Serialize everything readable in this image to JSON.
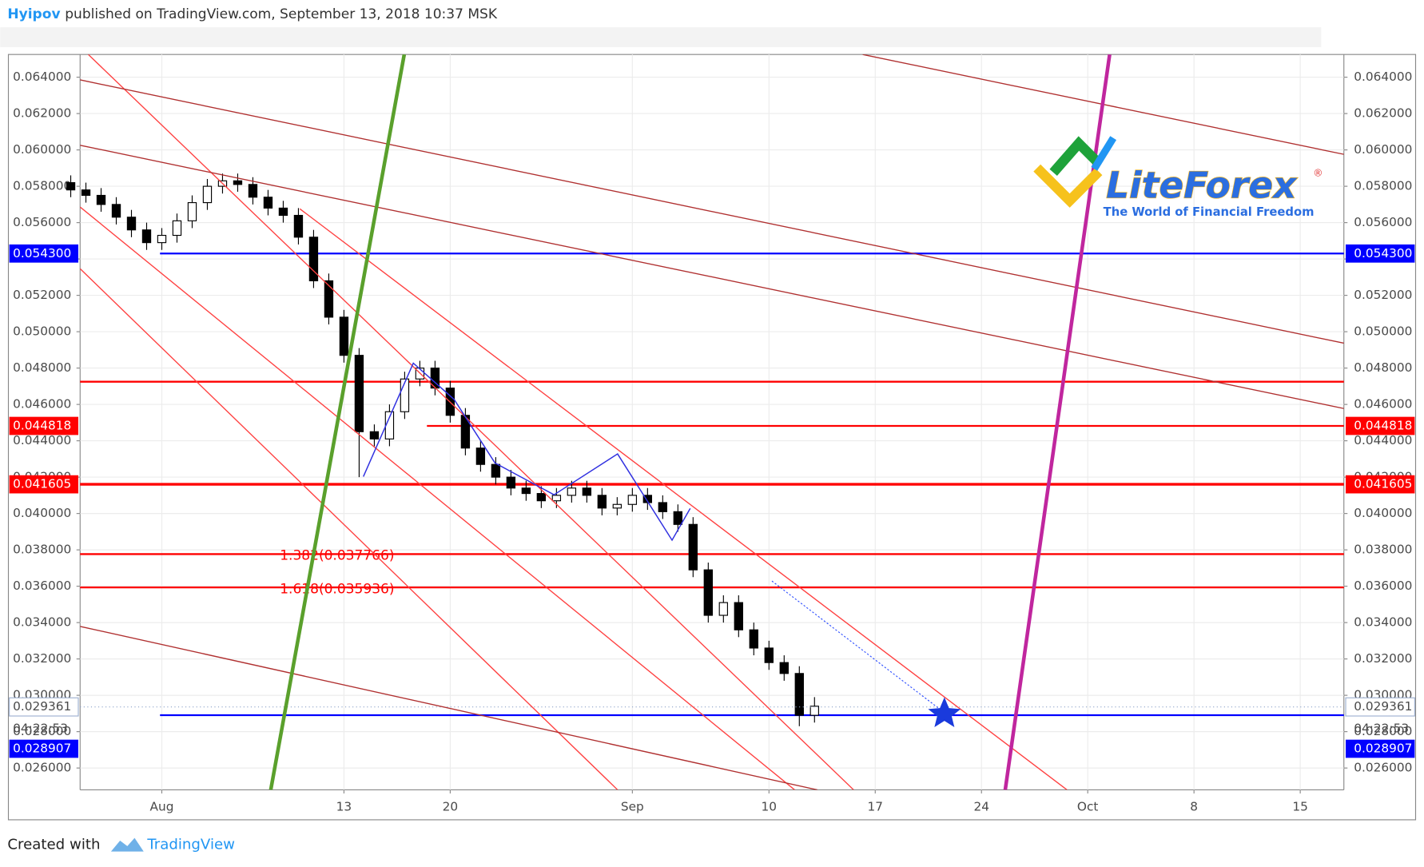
{
  "header": {
    "author": "Hyipov",
    "text": "published on TradingView.com, September 13, 2018 10:37 MSK"
  },
  "footer": {
    "text": "Created with",
    "brand": "TradingView"
  },
  "logo": {
    "name": "LiteForex",
    "mark": "®",
    "tagline": "The World of Financial Freedom"
  },
  "chart_data": {
    "type": "candlestick",
    "up_color": "#ffffff",
    "down_color": "#000000",
    "outline_color": "#000000",
    "grid": true,
    "x": [
      "2018-07-26",
      "2018-07-27",
      "2018-07-28",
      "2018-07-29",
      "2018-07-30",
      "2018-07-31",
      "2018-08-01",
      "2018-08-02",
      "2018-08-03",
      "2018-08-04",
      "2018-08-05",
      "2018-08-06",
      "2018-08-07",
      "2018-08-08",
      "2018-08-09",
      "2018-08-10",
      "2018-08-11",
      "2018-08-12",
      "2018-08-13",
      "2018-08-14",
      "2018-08-15",
      "2018-08-16",
      "2018-08-17",
      "2018-08-18",
      "2018-08-19",
      "2018-08-20",
      "2018-08-21",
      "2018-08-22",
      "2018-08-23",
      "2018-08-24",
      "2018-08-25",
      "2018-08-26",
      "2018-08-27",
      "2018-08-28",
      "2018-08-29",
      "2018-08-30",
      "2018-08-31",
      "2018-09-01",
      "2018-09-02",
      "2018-09-03",
      "2018-09-04",
      "2018-09-05",
      "2018-09-06",
      "2018-09-07",
      "2018-09-08",
      "2018-09-09",
      "2018-09-10",
      "2018-09-11",
      "2018-09-12",
      "2018-09-13"
    ],
    "open": [
      0.0582,
      0.0578,
      0.0575,
      0.057,
      0.0563,
      0.0556,
      0.0549,
      0.0553,
      0.0561,
      0.0571,
      0.058,
      0.0583,
      0.0581,
      0.0574,
      0.0568,
      0.0564,
      0.0552,
      0.0528,
      0.0508,
      0.0487,
      0.0445,
      0.0441,
      0.0456,
      0.0474,
      0.048,
      0.0469,
      0.0454,
      0.0436,
      0.0427,
      0.042,
      0.0414,
      0.0411,
      0.0407,
      0.041,
      0.0414,
      0.041,
      0.0403,
      0.0405,
      0.041,
      0.0406,
      0.0401,
      0.0394,
      0.0369,
      0.0344,
      0.0351,
      0.0336,
      0.0326,
      0.0318,
      0.0312,
      0.0289
    ],
    "high": [
      0.0586,
      0.0582,
      0.0579,
      0.0574,
      0.0567,
      0.056,
      0.0557,
      0.0565,
      0.0575,
      0.0584,
      0.0587,
      0.0587,
      0.0585,
      0.0578,
      0.0572,
      0.0568,
      0.0556,
      0.0532,
      0.0512,
      0.0491,
      0.0449,
      0.046,
      0.0478,
      0.0484,
      0.0484,
      0.0473,
      0.0458,
      0.044,
      0.0431,
      0.0424,
      0.0418,
      0.0415,
      0.0414,
      0.0418,
      0.0418,
      0.0414,
      0.0409,
      0.0414,
      0.0414,
      0.041,
      0.0405,
      0.0398,
      0.0373,
      0.0355,
      0.0355,
      0.034,
      0.033,
      0.0322,
      0.0316,
      0.0299
    ],
    "low": [
      0.0574,
      0.0571,
      0.0566,
      0.0559,
      0.0552,
      0.0545,
      0.0545,
      0.0549,
      0.0557,
      0.0567,
      0.0576,
      0.0577,
      0.057,
      0.0564,
      0.056,
      0.0548,
      0.0524,
      0.0504,
      0.0483,
      0.042,
      0.0437,
      0.0437,
      0.0452,
      0.047,
      0.0465,
      0.045,
      0.0432,
      0.0423,
      0.0416,
      0.041,
      0.0407,
      0.0403,
      0.0403,
      0.0406,
      0.0406,
      0.0399,
      0.0399,
      0.0401,
      0.0402,
      0.0397,
      0.039,
      0.0365,
      0.034,
      0.034,
      0.0332,
      0.0322,
      0.0314,
      0.0308,
      0.0283,
      0.0285
    ],
    "close": [
      0.0578,
      0.0575,
      0.057,
      0.0563,
      0.0556,
      0.0549,
      0.0553,
      0.0561,
      0.0571,
      0.058,
      0.0583,
      0.0581,
      0.0574,
      0.0568,
      0.0564,
      0.0552,
      0.0528,
      0.0508,
      0.0487,
      0.0445,
      0.0441,
      0.0456,
      0.0474,
      0.048,
      0.0469,
      0.0454,
      0.0436,
      0.0427,
      0.042,
      0.0414,
      0.0411,
      0.0407,
      0.041,
      0.0414,
      0.041,
      0.0403,
      0.0405,
      0.041,
      0.0406,
      0.0401,
      0.0394,
      0.0369,
      0.0344,
      0.0351,
      0.0336,
      0.0326,
      0.0318,
      0.0312,
      0.0289,
      0.0294
    ],
    "xlim": [
      "2018-07-26T14:50",
      "2018-10-17T21:00"
    ],
    "xticks": [
      {
        "value": "2018-08-01",
        "label": "Aug"
      },
      {
        "value": "2018-08-13",
        "label": "13"
      },
      {
        "value": "2018-08-20",
        "label": "20"
      },
      {
        "value": "2018-09-01",
        "label": "Sep"
      },
      {
        "value": "2018-09-10",
        "label": "10"
      },
      {
        "value": "2018-09-17",
        "label": "17"
      },
      {
        "value": "2018-09-24",
        "label": "24"
      },
      {
        "value": "2018-10-01",
        "label": "Oct"
      },
      {
        "value": "2018-10-08",
        "label": "8"
      },
      {
        "value": "2018-10-15",
        "label": "15"
      }
    ],
    "ylim": [
      0.0248,
      0.06525
    ],
    "yticks": [
      {
        "value": 0.026,
        "label": "0.026000"
      },
      {
        "value": 0.028,
        "label": "0.028000"
      },
      {
        "value": 0.03,
        "label": "0.030000"
      },
      {
        "value": 0.032,
        "label": "0.032000"
      },
      {
        "value": 0.034,
        "label": "0.034000"
      },
      {
        "value": 0.036,
        "label": "0.036000"
      },
      {
        "value": 0.038,
        "label": "0.038000"
      },
      {
        "value": 0.04,
        "label": "0.040000"
      },
      {
        "value": 0.042,
        "label": "0.042000"
      },
      {
        "value": 0.044,
        "label": "0.044000"
      },
      {
        "value": 0.046,
        "label": "0.046000"
      },
      {
        "value": 0.048,
        "label": "0.048000"
      },
      {
        "value": 0.05,
        "label": "0.050000"
      },
      {
        "value": 0.052,
        "label": "0.052000"
      },
      {
        "value": 0.054,
        "label": "0.054000"
      },
      {
        "value": 0.056,
        "label": "0.056000"
      },
      {
        "value": 0.058,
        "label": "0.058000"
      },
      {
        "value": 0.06,
        "label": "0.060000"
      },
      {
        "value": 0.062,
        "label": "0.062000"
      },
      {
        "value": 0.064,
        "label": "0.064000"
      }
    ],
    "levels": [
      {
        "value": 0.0543,
        "color": "#0000ff",
        "label": "0.054300"
      },
      {
        "value": 0.04725,
        "color": "#ff0000"
      },
      {
        "value": 0.044818,
        "color": "#ff0000",
        "label": "0.044818"
      },
      {
        "value": 0.041605,
        "color": "#ff0000",
        "label": "0.041605"
      },
      {
        "value": 0.037766,
        "color": "#ff0000",
        "text": "1.382(0.037766)"
      },
      {
        "value": 0.035936,
        "color": "#ff0000",
        "text": "1.618(0.035936)"
      },
      {
        "value": 0.028907,
        "color": "#0000ff",
        "label": "0.028907"
      }
    ],
    "current_price": {
      "value": 0.029361,
      "label": "0.029361"
    },
    "countdown": "04:22:53"
  }
}
